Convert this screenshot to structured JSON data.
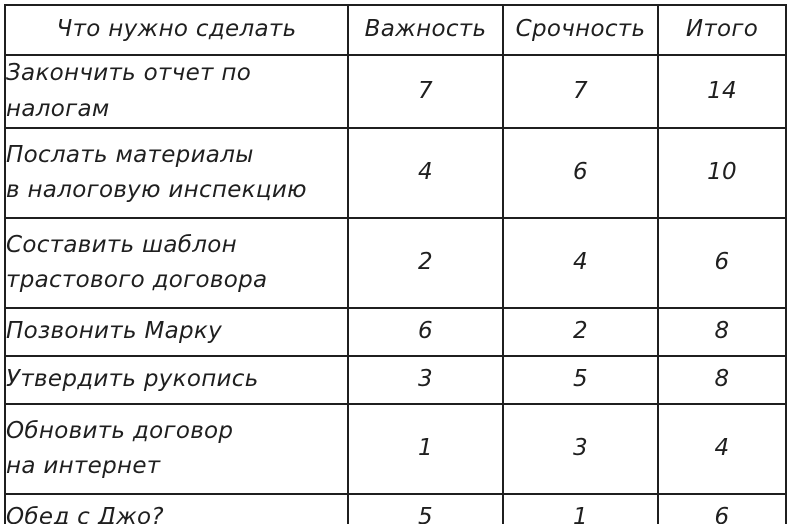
{
  "table": {
    "title": "priority-matrix",
    "headers": {
      "task": "Что нужно сделать",
      "importance": "Важность",
      "urgency": "Срочность",
      "total": "Итого"
    },
    "rows": [
      {
        "task": "Закончить отчет по налогам",
        "importance": "7",
        "urgency": "7",
        "total": "14"
      },
      {
        "task": "Послать материалы\nв налоговую инспекцию",
        "importance": "4",
        "urgency": "6",
        "total": "10"
      },
      {
        "task": "Составить шаблон\nтрастового договора",
        "importance": "2",
        "urgency": "4",
        "total": "6"
      },
      {
        "task": "Позвонить Марку",
        "importance": "6",
        "urgency": "2",
        "total": "8"
      },
      {
        "task": "Утвердить рукопись",
        "importance": "3",
        "urgency": "5",
        "total": "8"
      },
      {
        "task": "Обновить договор\nна интернет",
        "importance": "1",
        "urgency": "3",
        "total": "4"
      },
      {
        "task": "Обед с Джо?",
        "importance": "5",
        "urgency": "1",
        "total": "6"
      }
    ]
  },
  "colors": {
    "ink": "#1f1f1f",
    "background": "#ffffff"
  }
}
